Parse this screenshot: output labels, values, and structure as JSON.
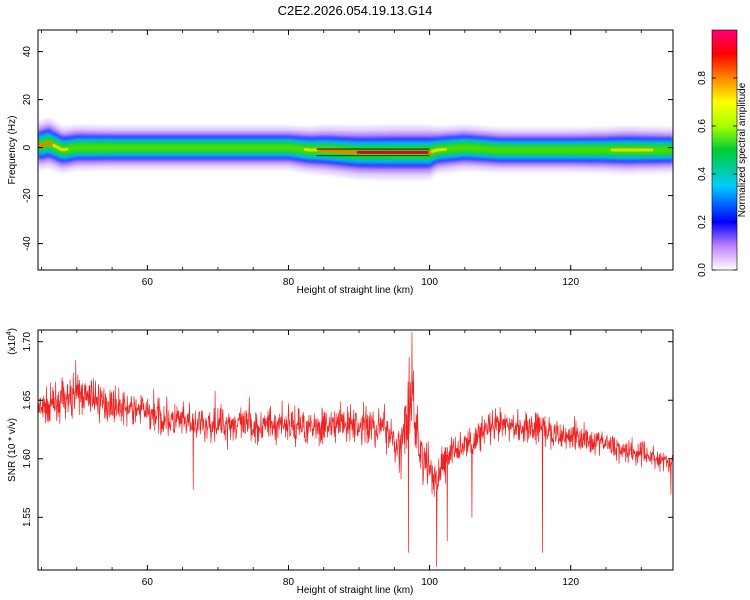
{
  "title": "C2E2.2026.054.19.13.G14",
  "colors": {
    "series": "#ee2222",
    "band_core": "#cc0044",
    "axis": "#000000"
  },
  "chart_data": [
    {
      "type": "heatmap",
      "xlabel": "Height of straight line (km)",
      "ylabel": "Frequency (Hz)",
      "xlim": [
        44.5,
        134.5
      ],
      "ylim": [
        -51,
        49
      ],
      "x_ticks": [
        "60",
        "80",
        "100",
        "120"
      ],
      "x_tick_values": [
        60,
        80,
        100,
        120
      ],
      "y_ticks": [
        "40",
        "20",
        "0",
        "-20",
        "-40"
      ],
      "y_tick_values": [
        40,
        20,
        0,
        -20,
        -40
      ],
      "band": {
        "x": [
          45,
          46,
          48,
          50,
          55,
          60,
          65,
          70,
          75,
          80,
          83,
          85,
          90,
          95,
          100,
          101,
          105,
          110,
          115,
          120,
          125,
          128,
          130,
          134
        ],
        "center_hz": [
          1,
          2,
          -1,
          0,
          0,
          0,
          0,
          0,
          0,
          0,
          -1,
          -1,
          -2,
          -2,
          -2,
          -1,
          0,
          -1,
          -1,
          -1,
          -1,
          -1,
          -1,
          -1
        ],
        "relative_amplitude": [
          0.7,
          0.75,
          0.6,
          0.55,
          0.5,
          0.5,
          0.5,
          0.5,
          0.5,
          0.5,
          0.6,
          0.7,
          0.85,
          0.9,
          0.9,
          0.6,
          0.55,
          0.5,
          0.5,
          0.5,
          0.55,
          0.65,
          0.6,
          0.55
        ]
      },
      "colorbar": {
        "label": "Normalized spectral amplitude",
        "ticks": [
          "0.0",
          "0.2",
          "0.4",
          "0.6",
          "0.8"
        ],
        "tick_values": [
          0,
          0.2,
          0.4,
          0.6,
          0.8
        ],
        "range": [
          0,
          1
        ]
      }
    },
    {
      "type": "line",
      "xlabel": "Height of straight line (km)",
      "ylabel": "SNR (10 * v/v)",
      "scale_label": "(x10",
      "scale_exponent": "4",
      "scale_suffix": ")",
      "xlim": [
        44.5,
        134.5
      ],
      "ylim": [
        1.505,
        1.71
      ],
      "x_ticks": [
        "60",
        "80",
        "100",
        "120"
      ],
      "x_tick_values": [
        60,
        80,
        100,
        120
      ],
      "y_ticks": [
        "1.70",
        "1.65",
        "1.60",
        "1.55"
      ],
      "y_tick_values": [
        1.7,
        1.65,
        1.6,
        1.55
      ],
      "series": [
        {
          "x": [
            44.5,
            46,
            48,
            50,
            52,
            54,
            56,
            58,
            60,
            62,
            64,
            66,
            68,
            70,
            72,
            74,
            76,
            78,
            80,
            82,
            84,
            86,
            88,
            90,
            92,
            94,
            95,
            96,
            97,
            97.5,
            98,
            99,
            100,
            101,
            102,
            104,
            106,
            108,
            110,
            112,
            114,
            116,
            118,
            120,
            122,
            124,
            126,
            128,
            130,
            132,
            134.5
          ],
          "values": [
            1.64,
            1.645,
            1.65,
            1.655,
            1.652,
            1.648,
            1.645,
            1.642,
            1.64,
            1.635,
            1.632,
            1.63,
            1.628,
            1.63,
            1.63,
            1.628,
            1.628,
            1.63,
            1.63,
            1.628,
            1.628,
            1.628,
            1.63,
            1.628,
            1.628,
            1.625,
            1.62,
            1.605,
            1.64,
            1.655,
            1.63,
            1.6,
            1.59,
            1.58,
            1.6,
            1.61,
            1.615,
            1.625,
            1.628,
            1.628,
            1.628,
            1.625,
            1.62,
            1.62,
            1.618,
            1.615,
            1.61,
            1.608,
            1.605,
            1.6,
            1.595
          ],
          "noise_amplitude": [
            0.016,
            0.017,
            0.018,
            0.018,
            0.017,
            0.016,
            0.016,
            0.016,
            0.016,
            0.016,
            0.017,
            0.016,
            0.016,
            0.016,
            0.016,
            0.016,
            0.016,
            0.016,
            0.016,
            0.016,
            0.016,
            0.016,
            0.017,
            0.018,
            0.018,
            0.019,
            0.022,
            0.028,
            0.035,
            0.045,
            0.035,
            0.025,
            0.02,
            0.018,
            0.016,
            0.015,
            0.015,
            0.015,
            0.015,
            0.014,
            0.015,
            0.015,
            0.014,
            0.013,
            0.013,
            0.012,
            0.012,
            0.012,
            0.011,
            0.011,
            0.011
          ],
          "spikes": [
            [
              66.5,
              1.574
            ],
            [
              97,
              1.52
            ],
            [
              97.5,
              1.708
            ],
            [
              101,
              1.508
            ],
            [
              102.5,
              1.53
            ],
            [
              106,
              1.55
            ],
            [
              116,
              1.52
            ],
            [
              134.2,
              1.57
            ]
          ]
        }
      ]
    }
  ]
}
